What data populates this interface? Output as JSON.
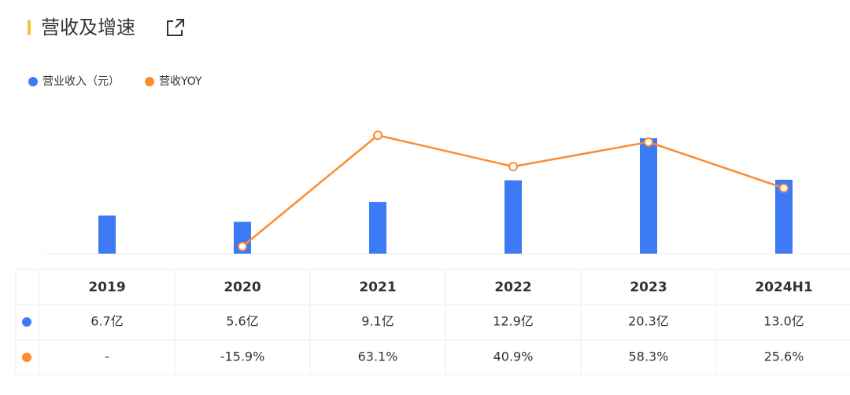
{
  "chart_data": {
    "type": "bar_line",
    "title": "营收及增速",
    "categories": [
      "2019",
      "2020",
      "2021",
      "2022",
      "2023",
      "2024H1"
    ],
    "series": [
      {
        "name": "营业收入（元）",
        "color": "#3d7af5",
        "type": "bar",
        "values": [
          6.7,
          5.6,
          9.1,
          12.9,
          20.3,
          13.0
        ],
        "value_labels": [
          "6.7亿",
          "5.6亿",
          "9.1亿",
          "12.9亿",
          "20.3亿",
          "13.0亿"
        ]
      },
      {
        "name": "营收YOY",
        "color": "#fb8c32",
        "type": "line",
        "axis": "y2",
        "values": [
          null,
          -15.9,
          63.1,
          40.9,
          58.3,
          25.6
        ],
        "value_labels": [
          "-",
          "-15.9%",
          "63.1%",
          "40.9%",
          "58.3%",
          "25.6%"
        ]
      }
    ],
    "ylim": [
      0,
      25
    ],
    "y2lim": [
      -21,
      80
    ]
  }
}
